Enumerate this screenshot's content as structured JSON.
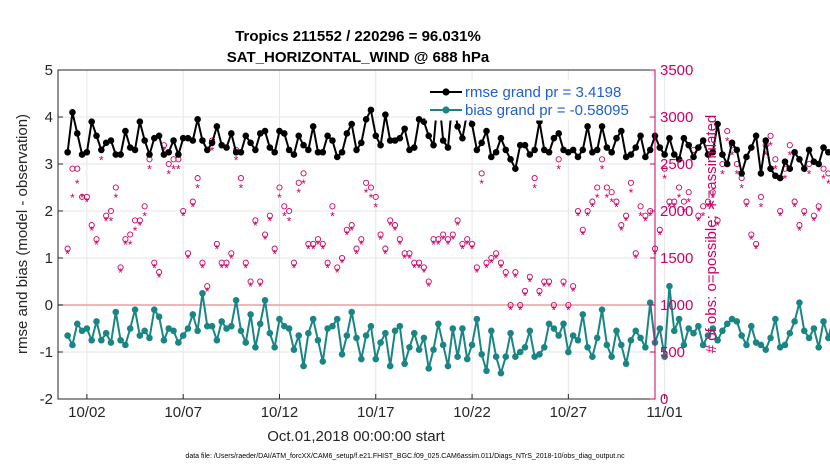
{
  "chart_data": {
    "type": "line",
    "title": "Tropics 211552 / 220296 = 96.031%",
    "subtitle": "SAT_HORIZONTAL_WIND @ 688 hPa",
    "xlabel": "Oct.01,2018 00:00:00 start",
    "ylabel": "rmse and bias (model - observation)",
    "y2label": "# of obs: o=possible; ∗=assimilated",
    "xlim": [
      0.5,
      31.5
    ],
    "ylim": [
      -2,
      5
    ],
    "y2lim": [
      0,
      3500
    ],
    "x_ticks": [
      {
        "day": 2,
        "label": "10/02"
      },
      {
        "day": 7,
        "label": "10/07"
      },
      {
        "day": 12,
        "label": "10/12"
      },
      {
        "day": 17,
        "label": "10/17"
      },
      {
        "day": 22,
        "label": "10/22"
      },
      {
        "day": 27,
        "label": "10/27"
      },
      {
        "day": 32,
        "label": "11/01"
      }
    ],
    "y_ticks": [
      -2,
      -1,
      0,
      1,
      2,
      3,
      4,
      5
    ],
    "y2_ticks": [
      0,
      500,
      1000,
      1500,
      2000,
      2500,
      3000,
      3500
    ],
    "zero_line": 0,
    "grid": true,
    "legend_position": "top-right",
    "x_step_days": 0.25,
    "x_start_day": 1.0,
    "colors": {
      "rmse": "#000000",
      "bias": "#1a8585",
      "obs": "#cc0066",
      "axis": "#262626",
      "legend_text": "#1f5fd0",
      "zero": "#e8a0a0"
    },
    "series": [
      {
        "name": "rmse grand pr = 3.4198",
        "values": [
          3.25,
          4.1,
          3.65,
          3.2,
          3.25,
          3.9,
          3.6,
          3.3,
          3.45,
          3.5,
          3.2,
          3.2,
          3.7,
          3.35,
          3.3,
          3.9,
          3.5,
          3.2,
          3.55,
          3.6,
          3.2,
          3.25,
          3.5,
          3.2,
          3.55,
          3.55,
          3.5,
          3.95,
          3.5,
          3.3,
          3.45,
          3.8,
          3.4,
          3.35,
          3.65,
          3.25,
          3.25,
          3.6,
          3.45,
          3.3,
          3.65,
          3.7,
          3.35,
          3.25,
          3.7,
          3.65,
          3.3,
          3.2,
          3.6,
          3.4,
          3.3,
          3.8,
          3.25,
          3.25,
          3.6,
          3.5,
          3.15,
          3.25,
          3.65,
          3.85,
          3.3,
          3.45,
          3.95,
          4.15,
          3.6,
          3.4,
          4.05,
          3.5,
          3.5,
          3.55,
          3.75,
          3.3,
          3.35,
          3.95,
          3.9,
          3.6,
          3.4,
          4.55,
          3.5,
          3.35,
          4.45,
          3.8,
          3.55,
          4.1,
          3.85,
          3.3,
          3.45,
          3.7,
          3.15,
          3.25,
          3.55,
          3.3,
          3.1,
          2.9,
          3.4,
          3.4,
          3.2,
          3.3,
          3.9,
          3.3,
          3.25,
          3.55,
          3.65,
          3.3,
          3.25,
          3.3,
          3.15,
          3.3,
          3.8,
          3.25,
          3.3,
          3.8,
          3.35,
          3.25,
          3.55,
          3.7,
          3.15,
          3.2,
          3.35,
          3.6,
          3.15,
          3.3,
          3.6,
          3.35,
          3.2,
          3.55,
          3.2,
          3.1,
          3.55,
          3.4,
          3.15,
          3.35,
          3.5,
          3.2,
          3.25,
          3.85,
          3.2,
          3.0,
          3.45,
          3.3,
          2.8,
          3.15,
          3.35,
          3.6,
          2.8,
          3.5,
          2.9,
          2.75,
          2.7,
          3.05,
          2.9,
          3.25,
          3.1,
          2.9,
          3.3,
          3.05,
          3.0,
          3.35,
          3.25,
          3.25,
          3.0,
          2.85,
          3.5,
          3.05,
          3.3,
          3.0,
          3.5,
          2.95
        ]
      },
      {
        "name": "bias grand pr = -0.58095",
        "values": [
          -0.65,
          -0.85,
          -0.4,
          -0.55,
          -0.5,
          -0.75,
          -0.35,
          -0.75,
          -0.6,
          -0.8,
          -0.15,
          -0.75,
          -0.85,
          -0.5,
          -0.1,
          -0.65,
          -0.55,
          -0.7,
          -0.1,
          -0.25,
          -0.75,
          -0.5,
          -0.55,
          -0.8,
          -0.65,
          -0.5,
          -0.2,
          -0.55,
          0.25,
          -0.45,
          -0.45,
          -0.75,
          -0.35,
          -0.5,
          -0.45,
          0.1,
          -0.55,
          -0.8,
          -0.2,
          -0.9,
          -0.4,
          0.1,
          -0.6,
          -0.9,
          -0.3,
          -0.45,
          -0.5,
          -0.95,
          -0.65,
          -1.3,
          -0.6,
          -0.3,
          -0.75,
          -1.2,
          -0.5,
          -0.45,
          -0.3,
          -1.05,
          -0.65,
          -0.15,
          -0.7,
          -1.15,
          -0.65,
          -0.45,
          -1.15,
          -0.8,
          -0.6,
          -1.3,
          -0.55,
          -0.45,
          -1.25,
          -0.9,
          -0.6,
          -0.95,
          -0.7,
          -1.35,
          -0.95,
          -0.4,
          -0.85,
          -1.3,
          -0.5,
          -1.1,
          -0.5,
          -1.15,
          -0.85,
          -0.3,
          -1.05,
          -1.4,
          -0.55,
          -1.1,
          -1.45,
          -1.1,
          -0.6,
          -1.1,
          -1.0,
          -0.9,
          -0.55,
          -1.1,
          -1.05,
          -0.9,
          -0.4,
          -0.5,
          -0.65,
          -0.4,
          -1.0,
          -0.65,
          -0.75,
          -0.2,
          -0.9,
          -1.1,
          -0.7,
          -0.1,
          -0.85,
          -1.1,
          -0.55,
          -0.85,
          -1.25,
          -0.75,
          -0.55,
          -0.7,
          -0.9,
          0.05,
          -0.8,
          -0.5,
          -1.1,
          0.4,
          -0.55,
          -0.3,
          -0.85,
          -0.5,
          -0.6,
          -0.45,
          -0.85,
          -0.65,
          -0.5,
          -0.75,
          -0.55,
          -0.4,
          -0.3,
          -0.35,
          -0.65,
          -0.85,
          -0.45,
          -0.8,
          -0.85,
          -0.95,
          -0.7,
          -0.3,
          -0.9,
          -0.85,
          -0.6,
          -0.35,
          0.05,
          -0.55,
          -0.7,
          -0.5,
          -0.9,
          -0.35,
          -0.7,
          -0.3,
          -0.7,
          -0.6,
          -0.4,
          -0.65,
          0.1,
          -0.3,
          -0.8,
          -0.45,
          -0.3,
          -0.95,
          -0.8,
          -0.5,
          -0.55,
          -0.3,
          -0.35,
          -0.5
        ]
      },
      {
        "name": "possible",
        "marker": "circle",
        "values": [
          1600,
          2450,
          2450,
          2150,
          2150,
          1850,
          1700,
          2650,
          1950,
          2000,
          2250,
          1400,
          1700,
          1750,
          1900,
          1900,
          2050,
          2550,
          1450,
          1350,
          2700,
          2500,
          2550,
          2550,
          2000,
          1550,
          2100,
          2350,
          1450,
          1200,
          2750,
          1650,
          1450,
          1450,
          1550,
          2650,
          2350,
          1450,
          1250,
          1900,
          1250,
          1750,
          1950,
          1600,
          2250,
          2050,
          2000,
          1450,
          2300,
          2400,
          1650,
          1650,
          1700,
          1650,
          1450,
          2050,
          1400,
          1500,
          1800,
          1850,
          1600,
          1700,
          2300,
          2250,
          2150,
          1750,
          1600,
          1900,
          1850,
          1700,
          1550,
          1550,
          1450,
          1450,
          1400,
          1250,
          1700,
          1700,
          1750,
          1700,
          1750,
          1900,
          1650,
          1700,
          1650,
          1400,
          2400,
          1450,
          1500,
          1550,
          1450,
          1350,
          1000,
          1350,
          1000,
          1150,
          1300,
          2350,
          1150,
          1250,
          1250,
          1000,
          2550,
          1250,
          1000,
          1200,
          2000,
          1800,
          2000,
          2100,
          2250,
          2550,
          2250,
          2200,
          2100,
          1850,
          1950,
          2300,
          1550,
          2050,
          1950,
          2000,
          1600,
          1800,
          2450,
          2100,
          2100,
          2250,
          2100,
          2200,
          2650,
          1950,
          2050,
          2100,
          2200,
          1900,
          2500,
          2850,
          2700,
          2500,
          2350,
          2100,
          1750,
          1650,
          2150,
          2700,
          2800,
          2550,
          2000,
          2450,
          2700,
          2100,
          1850,
          2000,
          2500,
          1950,
          2050,
          2450,
          2400,
          2450,
          2250,
          2100,
          2850,
          3050,
          3050,
          2950,
          2500,
          2400,
          2000,
          1850,
          1700,
          2050,
          2250,
          2050,
          2000,
          1650,
          1550,
          2150,
          2500,
          1600,
          1750
        ]
      },
      {
        "name": "assimilated",
        "marker": "star",
        "values": [
          1550,
          2150,
          2300,
          2150,
          2100,
          1800,
          1650,
          2550,
          1900,
          1900,
          2150,
          1350,
          1650,
          1650,
          1800,
          1850,
          1950,
          2450,
          1400,
          1300,
          2650,
          2400,
          2450,
          2450,
          1950,
          1500,
          2050,
          2250,
          1400,
          1150,
          2650,
          1600,
          1400,
          1400,
          1500,
          2550,
          2250,
          1400,
          1200,
          1850,
          1200,
          1700,
          1900,
          1550,
          2150,
          1950,
          1900,
          1400,
          2200,
          2300,
          1600,
          1600,
          1650,
          1600,
          1400,
          1950,
          1350,
          1450,
          1750,
          1800,
          1550,
          1650,
          2200,
          2150,
          2050,
          1700,
          1550,
          1850,
          1800,
          1650,
          1500,
          1500,
          1400,
          1400,
          1350,
          1200,
          1650,
          1650,
          1700,
          1650,
          1700,
          1850,
          1600,
          1650,
          1600,
          1350,
          2300,
          1400,
          1450,
          1500,
          1400,
          1300,
          950,
          1300,
          950,
          1100,
          1250,
          2250,
          1100,
          1200,
          1200,
          950,
          2450,
          1200,
          950,
          1150,
          1950,
          1750,
          1950,
          2050,
          2150,
          2450,
          2150,
          2100,
          2050,
          1800,
          1900,
          2200,
          1500,
          1950,
          1900,
          1950,
          1550,
          1750,
          2350,
          2050,
          2050,
          2150,
          2000,
          2100,
          2550,
          1900,
          1950,
          2050,
          2150,
          1850,
          2400,
          2750,
          2600,
          2400,
          2250,
          2050,
          1700,
          1600,
          2050,
          2600,
          2700,
          2450,
          1950,
          2350,
          2600,
          2050,
          1800,
          1950,
          2400,
          1900,
          2000,
          2350,
          2300,
          2350,
          2200,
          2050,
          2750,
          2950,
          2950,
          2850,
          2400,
          2300,
          1950,
          1800,
          1650,
          2000,
          2150,
          2000,
          1950,
          1600,
          1500,
          2050,
          2400,
          1550,
          1700
        ]
      }
    ],
    "footnote": "data file: /Users/raeder/DAI/ATM_forcXX/CAM6_setup/f.e21.FHIST_BGC.f09_025.CAM6assim.011/Diags_NTrS_2018-10/obs_diag_output.nc"
  }
}
